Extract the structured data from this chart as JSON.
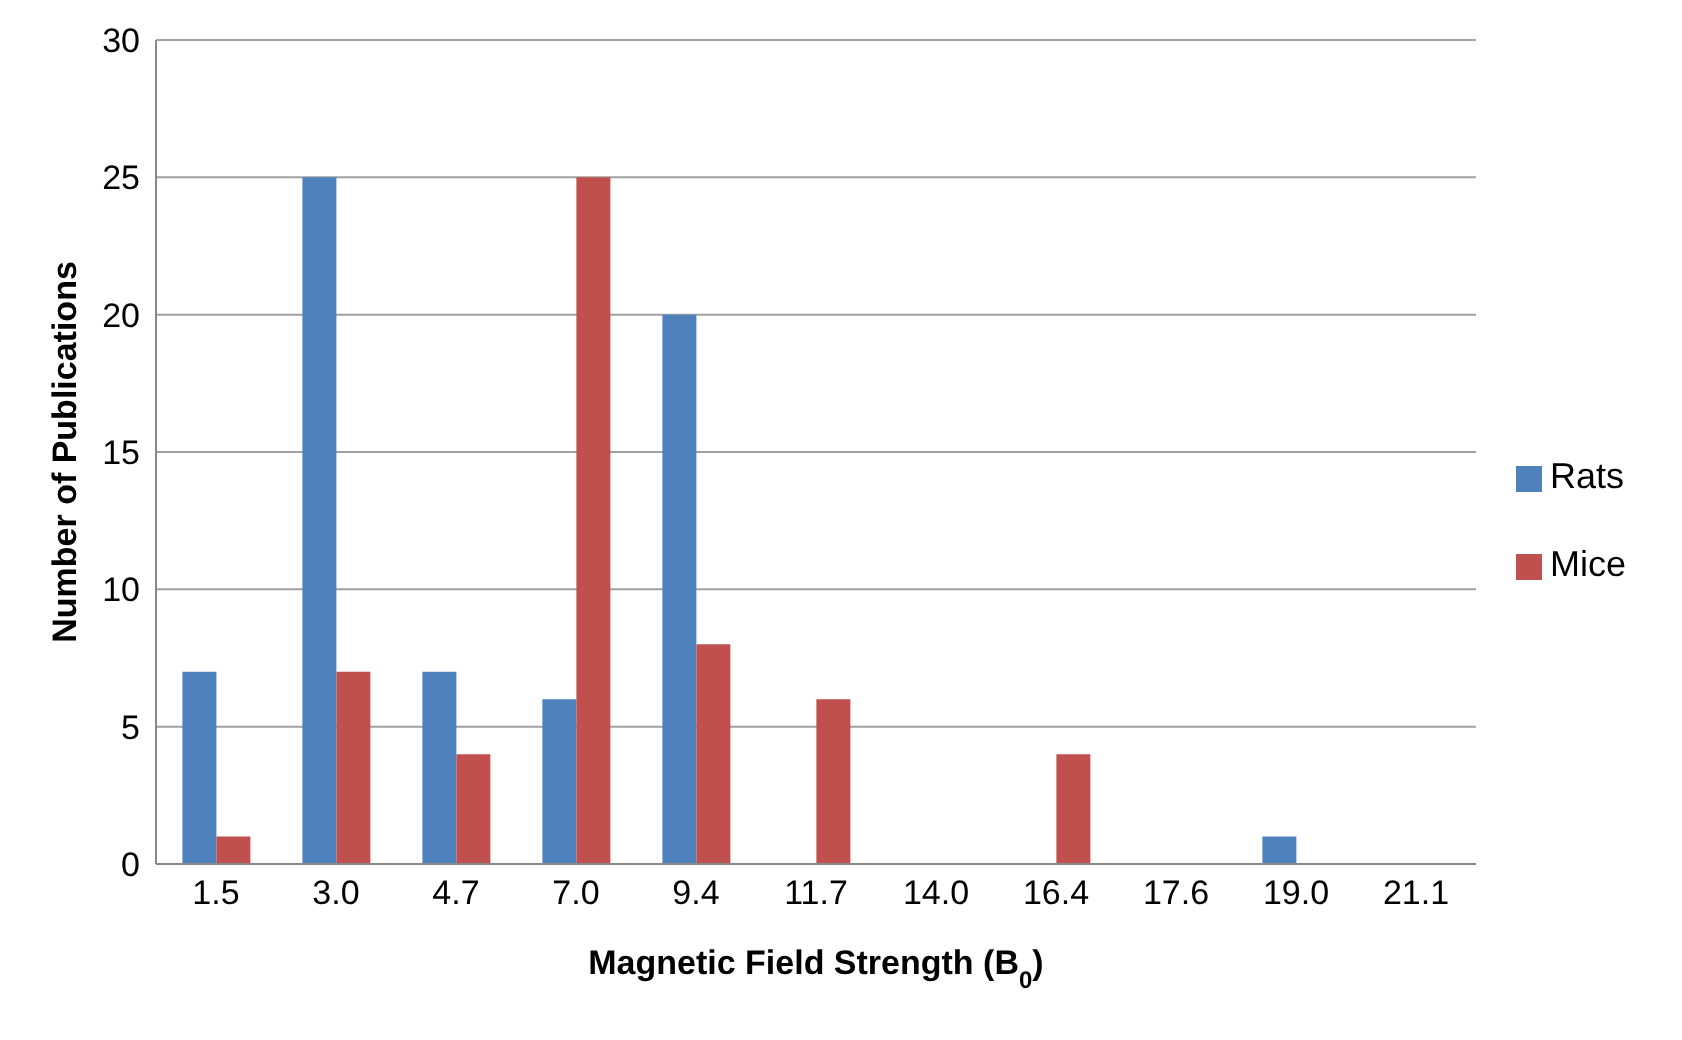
{
  "chart_data": {
    "type": "bar",
    "xlabel": "Magnetic Field Strength (B$_{0}$)",
    "ylabel": "Number of Publications",
    "categories": [
      "1.5",
      "3.0",
      "4.7",
      "7.0",
      "9.4",
      "11.7",
      "14.0",
      "16.4",
      "17.6",
      "19.0",
      "21.1"
    ],
    "series": [
      {
        "name": "Rats",
        "color": "#4f81bd",
        "values": [
          7,
          25,
          7,
          6,
          20,
          0,
          0,
          0,
          0,
          1,
          0
        ]
      },
      {
        "name": "Mice",
        "color": "#c0504d",
        "values": [
          1,
          7,
          4,
          25,
          8,
          6,
          0,
          4,
          0,
          0,
          0
        ]
      }
    ],
    "ylim": [
      0,
      30
    ],
    "yticks": [
      0,
      5,
      10,
      15,
      20,
      25,
      30
    ],
    "grid": "y",
    "legend": "right"
  }
}
